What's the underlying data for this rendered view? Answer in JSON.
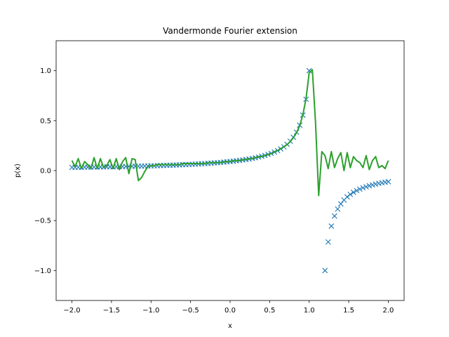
{
  "chart_data": {
    "type": "line",
    "title": "Vandermonde Fourier extension",
    "xlabel": "x",
    "ylabel": "p(x)",
    "xlim": [
      -2.2,
      2.2
    ],
    "ylim": [
      -1.3,
      1.3
    ],
    "xticks": [
      -2.0,
      -1.5,
      -1.0,
      -0.5,
      0.0,
      0.5,
      1.0,
      1.5,
      2.0
    ],
    "xtick_labels": [
      "−2.0",
      "−1.5",
      "−1.0",
      "−0.5",
      "0.0",
      "0.5",
      "1.0",
      "1.5",
      "2.0"
    ],
    "yticks": [
      -1.0,
      -0.5,
      0.0,
      0.5,
      1.0
    ],
    "ytick_labels": [
      "−1.0",
      "−0.5",
      "0.0",
      "0.5",
      "1.0"
    ],
    "grid": false,
    "legend": "none",
    "series": [
      {
        "style": "markers-x",
        "color": "#1f77b4",
        "function": "0.1/(1.1 - x)",
        "x_range": [
          -2.0,
          2.0
        ],
        "n_points": 101,
        "clip_to_axes": true
      },
      {
        "style": "line",
        "color": "#2ca02c",
        "x": [
          -2.0,
          -1.96,
          -1.92,
          -1.88,
          -1.84,
          -1.8,
          -1.76,
          -1.72,
          -1.68,
          -1.64,
          -1.6,
          -1.56,
          -1.52,
          -1.48,
          -1.44,
          -1.4,
          -1.36,
          -1.32,
          -1.28,
          -1.24,
          -1.2,
          -1.16,
          -1.12,
          -1.08,
          -1.04,
          -1.0,
          -0.96,
          -0.92,
          -0.88,
          -0.84,
          -0.8,
          -0.76,
          -0.72,
          -0.68,
          -0.64,
          -0.6,
          -0.56,
          -0.52,
          -0.48,
          -0.44,
          -0.4,
          -0.36,
          -0.32,
          -0.28,
          -0.24,
          -0.2,
          -0.16,
          -0.12,
          -0.08,
          -0.04,
          0.0,
          0.04,
          0.08,
          0.12,
          0.16,
          0.2,
          0.24,
          0.28,
          0.32,
          0.36,
          0.4,
          0.44,
          0.48,
          0.52,
          0.56,
          0.6,
          0.64,
          0.68,
          0.72,
          0.76,
          0.8,
          0.84,
          0.88,
          0.92,
          0.96,
          1.0,
          1.04,
          1.08,
          1.12,
          1.16,
          1.2,
          1.24,
          1.28,
          1.32,
          1.36,
          1.4,
          1.44,
          1.48,
          1.52,
          1.56,
          1.6,
          1.64,
          1.68,
          1.72,
          1.76,
          1.8,
          1.84,
          1.88,
          1.92,
          1.96,
          2.0
        ],
        "y": [
          0.1,
          0.04,
          0.12,
          0.02,
          0.09,
          0.06,
          0.02,
          0.13,
          0.02,
          0.12,
          0.03,
          0.05,
          0.11,
          0.02,
          0.12,
          0.01,
          0.09,
          0.13,
          -0.03,
          0.12,
          0.11,
          -0.1,
          -0.07,
          -0.01,
          0.04,
          0.05,
          0.05,
          0.06,
          0.06,
          0.06,
          0.06,
          0.06,
          0.06,
          0.06,
          0.06,
          0.07,
          0.07,
          0.07,
          0.07,
          0.07,
          0.07,
          0.07,
          0.07,
          0.08,
          0.08,
          0.08,
          0.08,
          0.08,
          0.09,
          0.09,
          0.09,
          0.1,
          0.1,
          0.1,
          0.11,
          0.11,
          0.12,
          0.12,
          0.13,
          0.14,
          0.14,
          0.15,
          0.16,
          0.17,
          0.19,
          0.2,
          0.22,
          0.24,
          0.26,
          0.29,
          0.33,
          0.38,
          0.45,
          0.56,
          0.72,
          0.98,
          1.01,
          0.48,
          -0.25,
          0.19,
          0.15,
          0.02,
          0.19,
          0.03,
          0.12,
          0.18,
          0.0,
          0.18,
          0.03,
          0.14,
          0.1,
          0.08,
          0.03,
          0.15,
          0.01,
          0.1,
          0.14,
          0.03,
          0.05,
          0.02,
          0.1
        ]
      }
    ]
  }
}
